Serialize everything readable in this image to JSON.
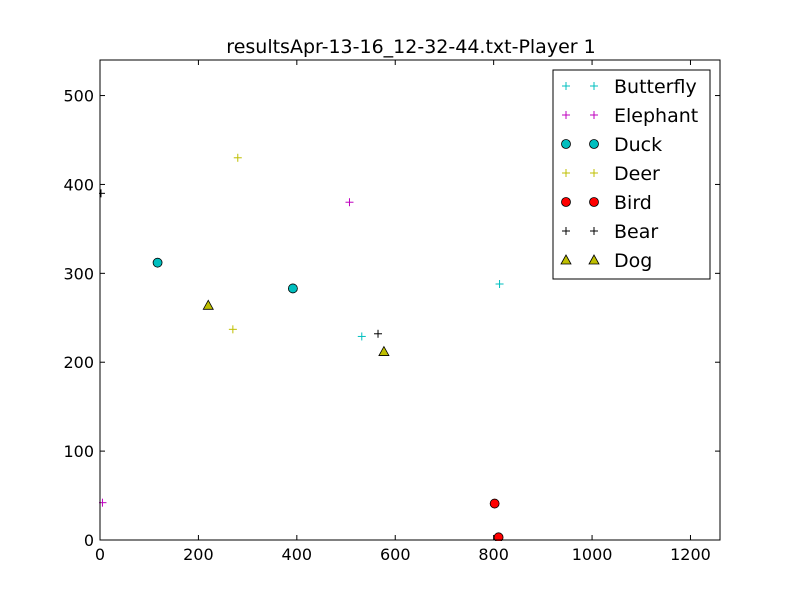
{
  "chart_data": {
    "type": "scatter",
    "title": "resultsApr-13-16_12-32-44.txt-Player 1",
    "xlabel": "",
    "ylabel": "",
    "xlim": [
      0,
      1260
    ],
    "ylim": [
      0,
      540
    ],
    "xticks": [
      0,
      200,
      400,
      600,
      800,
      1000,
      1200
    ],
    "yticks": [
      0,
      100,
      200,
      300,
      400,
      500
    ],
    "legend_position": "top-right",
    "series": [
      {
        "name": "Butterfly",
        "marker": "plus",
        "color": "#00bfbf",
        "points": [
          [
            532,
            229
          ],
          [
            812,
            288
          ]
        ]
      },
      {
        "name": "Elephant",
        "marker": "plus",
        "color": "#bf00bf",
        "points": [
          [
            5,
            42
          ],
          [
            507,
            380
          ]
        ]
      },
      {
        "name": "Duck",
        "marker": "circle",
        "color": "#00bfbf",
        "points": [
          [
            117,
            312
          ],
          [
            392,
            283
          ]
        ]
      },
      {
        "name": "Deer",
        "marker": "plus",
        "color": "#bfbf00",
        "points": [
          [
            280,
            430
          ],
          [
            270,
            237
          ]
        ]
      },
      {
        "name": "Bird",
        "marker": "circle",
        "color": "#ff0000",
        "points": [
          [
            802,
            41
          ],
          [
            810,
            3
          ]
        ]
      },
      {
        "name": "Bear",
        "marker": "plus",
        "color": "#000000",
        "points": [
          [
            2,
            390
          ],
          [
            565,
            232
          ]
        ]
      },
      {
        "name": "Dog",
        "marker": "triangle",
        "color": "#bfbf00",
        "points": [
          [
            220,
            264
          ],
          [
            577,
            212
          ]
        ]
      }
    ]
  }
}
